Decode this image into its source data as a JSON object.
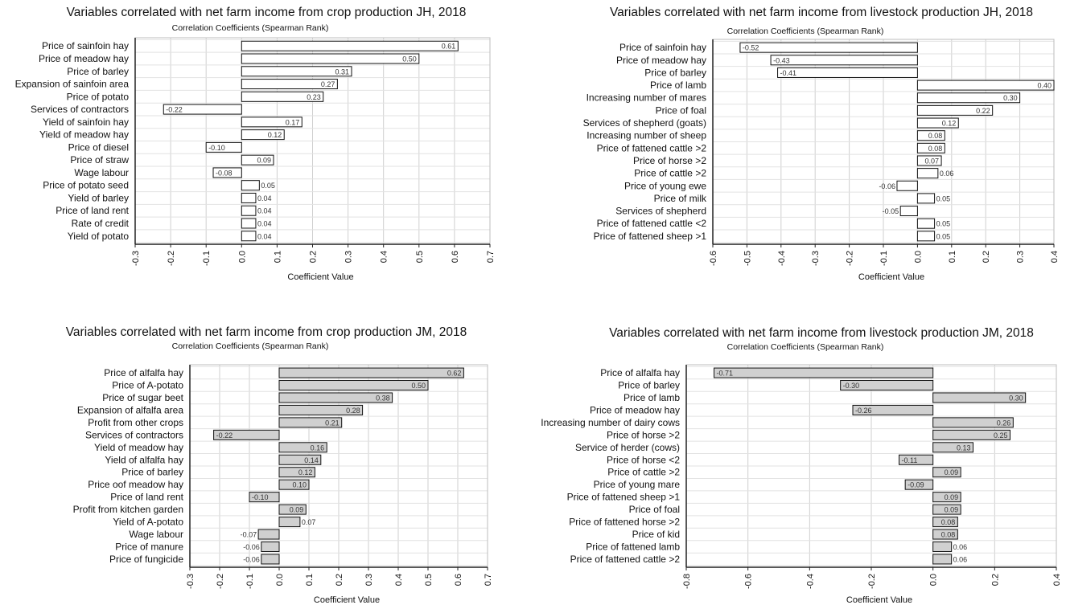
{
  "chart_data": [
    {
      "type": "bar",
      "orientation": "horizontal",
      "title": "Variables correlated with net farm income from crop production JH, 2018",
      "subtitle": "Correlation Coefficients (Spearman Rank)",
      "xlabel": "Coefficient Value",
      "xlim": [
        -0.3,
        0.7
      ],
      "xticks": [
        "-0.3",
        "-0.2",
        "-0.1",
        "0.0",
        "0.1",
        "0.2",
        "0.3",
        "0.4",
        "0.5",
        "0.6",
        "0.7"
      ],
      "grid": true,
      "bar_fill": "#ffffff",
      "categories": [
        "Price of sainfoin hay",
        "Price of meadow hay",
        "Price of barley",
        "Expansion of sainfoin area",
        "Price of potato",
        "Services of contractors",
        "Yield of sainfoin hay",
        "Yield of meadow hay",
        "Price of diesel",
        "Price of straw",
        "Wage labour",
        "Price of potato seed",
        "Yield of barley",
        "Price of land rent",
        "Rate of credit",
        "Yield of potato"
      ],
      "values": [
        0.61,
        0.5,
        0.31,
        0.27,
        0.23,
        -0.22,
        0.17,
        0.12,
        -0.1,
        0.09,
        -0.08,
        0.05,
        0.04,
        0.04,
        0.04,
        0.04
      ],
      "value_labels": [
        "0.61",
        "0.50",
        "0.31",
        "0.27",
        "0.23",
        "-0.22",
        "0.17",
        "0.12",
        "-0.10",
        "0.09",
        "-0.08",
        "0.05",
        "0.04",
        "0.04",
        "0.04",
        "0.04"
      ]
    },
    {
      "type": "bar",
      "orientation": "horizontal",
      "title": "Variables correlated with net farm income from livestock production JH, 2018",
      "subtitle": "Correlation Coefficients (Spearman Rank)",
      "xlabel": "Coefficient Value",
      "xlim": [
        -0.6,
        0.4
      ],
      "xticks": [
        "-0.6",
        "-0.5",
        "-0.4",
        "-0.3",
        "-0.2",
        "-0.1",
        "0.0",
        "0.1",
        "0.2",
        "0.3",
        "0.4"
      ],
      "grid": true,
      "bar_fill": "#ffffff",
      "categories": [
        "Price of sainfoin hay",
        "Price of meadow hay",
        "Price of barley",
        "Price of lamb",
        "Increasing number of mares",
        "Price of foal",
        "Services of shepherd (goats)",
        "Increasing number of sheep",
        "Price of fattened  cattle >2",
        "Price of horse >2",
        "Price of cattle >2",
        "Price of young ewe",
        "Price of milk",
        "Services of shepherd",
        "Price of fattened cattle <2",
        "Price of fattened sheep >1"
      ],
      "values": [
        -0.52,
        -0.43,
        -0.41,
        0.4,
        0.3,
        0.22,
        0.12,
        0.08,
        0.08,
        0.07,
        0.06,
        -0.06,
        0.05,
        -0.05,
        0.05,
        0.05
      ],
      "value_labels": [
        "-0.52",
        "-0.43",
        "-0.41",
        "0.40",
        "0.30",
        "0.22",
        "0.12",
        "0.08",
        "0.08",
        "0.07",
        "0.06",
        "-0.06",
        "0.05",
        "-0.05",
        "0.05",
        "0.05"
      ]
    },
    {
      "type": "bar",
      "orientation": "horizontal",
      "title": "Variables correlated with net farm income from crop production JM, 2018",
      "subtitle": "Correlation Coefficients (Spearman Rank)",
      "xlabel": "Coefficient Value",
      "xlim": [
        -0.3,
        0.7
      ],
      "xticks": [
        "-0.3",
        "-0.2",
        "-0.1",
        "0.0",
        "0.1",
        "0.2",
        "0.3",
        "0.4",
        "0.5",
        "0.6",
        "0.7"
      ],
      "grid": true,
      "bar_fill": "#d0d0d0",
      "categories": [
        "Price of alfalfa hay",
        "Price of A-potato",
        "Price of sugar beet",
        "Expansion of alfalfa area",
        "Profit from other crops",
        "Services of contractors",
        "Yield of meadow hay",
        "Yield of alfalfa hay",
        "Price of barley",
        "Price oof meadow hay",
        "Price of land rent",
        "Profit from kitchen garden",
        "Yield of A-potato",
        "Wage labour",
        "Price of manure",
        "Price of fungicide"
      ],
      "values": [
        0.62,
        0.5,
        0.38,
        0.28,
        0.21,
        -0.22,
        0.16,
        0.14,
        0.12,
        0.1,
        -0.1,
        0.09,
        0.07,
        -0.07,
        -0.06,
        -0.06
      ],
      "value_labels": [
        "0.62",
        "0.50",
        "0.38",
        "0.28",
        "0.21",
        "-0.22",
        "0.16",
        "0.14",
        "0.12",
        "0.10",
        "-0.10",
        "0.09",
        "0.07",
        "-0.07",
        "-0.06",
        "-0.06"
      ]
    },
    {
      "type": "bar",
      "orientation": "horizontal",
      "title": "Variables correlated with net farm income from livestock production JM, 2018",
      "subtitle": "Correlation Coefficients (Spearman Rank)",
      "xlabel": "Coefficient Value",
      "xlim": [
        -0.8,
        0.4
      ],
      "xticks": [
        "-0.8",
        "-0.6",
        "-0.4",
        "-0.2",
        "0.0",
        "0.2",
        "0.4"
      ],
      "grid": true,
      "bar_fill": "#d0d0d0",
      "categories": [
        "Price of alfalfa hay",
        "Price of barley",
        "Price of lamb",
        "Price of meadow hay",
        "Increasing number of dairy cows",
        "Price of horse >2",
        "Service of herder (cows)",
        "Price of horse <2",
        "Price of cattle >2",
        "Price of young mare",
        "Price of fattened sheep >1",
        "Price of foal",
        "Price of fattened horse >2",
        "Price of kid",
        "Price of fattened lamb",
        "Price of fattened cattle >2"
      ],
      "values": [
        -0.71,
        -0.3,
        0.3,
        -0.26,
        0.26,
        0.25,
        0.13,
        -0.11,
        0.09,
        -0.09,
        0.09,
        0.09,
        0.08,
        0.08,
        0.06,
        0.06
      ],
      "value_labels": [
        "-0.71",
        "-0.30",
        "0.30",
        "-0.26",
        "0.26",
        "0.25",
        "0.13",
        "-0.11",
        "0.09",
        "-0.09",
        "0.09",
        "0.09",
        "0.08",
        "0.08",
        "0.06",
        "0.06"
      ]
    }
  ]
}
